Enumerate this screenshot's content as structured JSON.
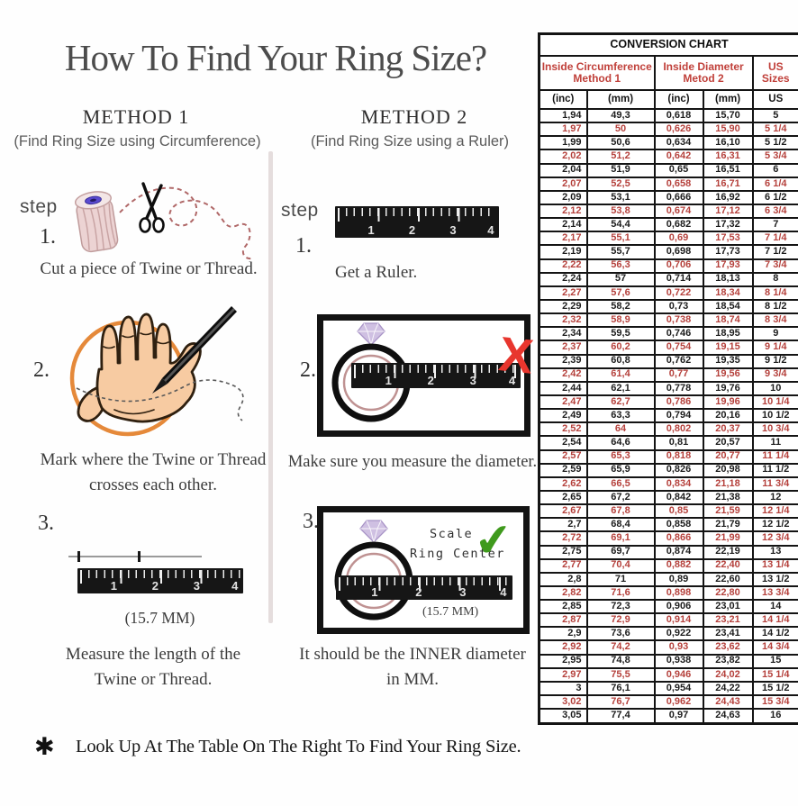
{
  "page": {
    "title": "How To Find Your Ring Size?",
    "footnote_bullet": "✱",
    "footnote": "Look Up At The Table On The Right To Find Your Ring Size."
  },
  "ruler_numbers": [
    "1",
    "2",
    "3",
    "4"
  ],
  "method1": {
    "heading": "METHOD 1",
    "subheading": "(Find Ring Size using Circumference)",
    "step_label": "step",
    "step1": {
      "num": "1.",
      "caption": "Cut a piece of Twine or Thread."
    },
    "step2": {
      "num": "2.",
      "caption_line1": "Mark where the Twine or Thread",
      "caption_line2": "crosses each other."
    },
    "step3": {
      "num": "3.",
      "measurement": "(15.7 MM)",
      "caption_line1": "Measure the length of the",
      "caption_line2": "Twine or Thread."
    }
  },
  "method2": {
    "heading": "METHOD 2",
    "subheading": "(Find Ring Size using a Ruler)",
    "step_label": "step",
    "step1": {
      "num": "1.",
      "caption": "Get a Ruler."
    },
    "step2": {
      "num": "2.",
      "wrong_mark": "X",
      "caption": "Make sure you measure the diameter."
    },
    "step3": {
      "num": "3.",
      "scale_line1": "Scale",
      "scale_line2": "Ring Center",
      "check_mark": "✔",
      "measurement": "(15.7 MM)",
      "caption_line1": "It should be the INNER diameter",
      "caption_line2": "in MM."
    }
  },
  "table": {
    "title": "CONVERSION CHART",
    "group_headers": [
      {
        "line1": "Inside Circumference",
        "line2": "Method 1"
      },
      {
        "line1": "Inside Diameter",
        "line2": "Metod 2"
      },
      {
        "line1": "US Sizes",
        "line2": ""
      }
    ],
    "sub_headers": [
      "(inc)",
      "(mm)",
      "(inc)",
      "(mm)",
      "US"
    ],
    "rows": [
      [
        "1,94",
        "49,3",
        "0,618",
        "15,70",
        "5"
      ],
      [
        "1,97",
        "50",
        "0,626",
        "15,90",
        "5 1/4"
      ],
      [
        "1,99",
        "50,6",
        "0,634",
        "16,10",
        "5 1/2"
      ],
      [
        "2,02",
        "51,2",
        "0,642",
        "16,31",
        "5 3/4"
      ],
      [
        "2,04",
        "51,9",
        "0,65",
        "16,51",
        "6"
      ],
      [
        "2,07",
        "52,5",
        "0,658",
        "16,71",
        "6 1/4"
      ],
      [
        "2,09",
        "53,1",
        "0,666",
        "16,92",
        "6 1/2"
      ],
      [
        "2,12",
        "53,8",
        "0,674",
        "17,12",
        "6 3/4"
      ],
      [
        "2,14",
        "54,4",
        "0,682",
        "17,32",
        "7"
      ],
      [
        "2,17",
        "55,1",
        "0,69",
        "17,53",
        "7 1/4"
      ],
      [
        "2,19",
        "55,7",
        "0,698",
        "17,73",
        "7 1/2"
      ],
      [
        "2,22",
        "56,3",
        "0,706",
        "17,93",
        "7 3/4"
      ],
      [
        "2,24",
        "57",
        "0,714",
        "18,13",
        "8"
      ],
      [
        "2,27",
        "57,6",
        "0,722",
        "18,34",
        "8 1/4"
      ],
      [
        "2,29",
        "58,2",
        "0,73",
        "18,54",
        "8 1/2"
      ],
      [
        "2,32",
        "58,9",
        "0,738",
        "18,74",
        "8 3/4"
      ],
      [
        "2,34",
        "59,5",
        "0,746",
        "18,95",
        "9"
      ],
      [
        "2,37",
        "60,2",
        "0,754",
        "19,15",
        "9 1/4"
      ],
      [
        "2,39",
        "60,8",
        "0,762",
        "19,35",
        "9 1/2"
      ],
      [
        "2,42",
        "61,4",
        "0,77",
        "19,56",
        "9 3/4"
      ],
      [
        "2,44",
        "62,1",
        "0,778",
        "19,76",
        "10"
      ],
      [
        "2,47",
        "62,7",
        "0,786",
        "19,96",
        "10 1/4"
      ],
      [
        "2,49",
        "63,3",
        "0,794",
        "20,16",
        "10 1/2"
      ],
      [
        "2,52",
        "64",
        "0,802",
        "20,37",
        "10 3/4"
      ],
      [
        "2,54",
        "64,6",
        "0,81",
        "20,57",
        "11"
      ],
      [
        "2,57",
        "65,3",
        "0,818",
        "20,77",
        "11 1/4"
      ],
      [
        "2,59",
        "65,9",
        "0,826",
        "20,98",
        "11 1/2"
      ],
      [
        "2,62",
        "66,5",
        "0,834",
        "21,18",
        "11 3/4"
      ],
      [
        "2,65",
        "67,2",
        "0,842",
        "21,38",
        "12"
      ],
      [
        "2,67",
        "67,8",
        "0,85",
        "21,59",
        "12 1/4"
      ],
      [
        "2,7",
        "68,4",
        "0,858",
        "21,79",
        "12 1/2"
      ],
      [
        "2,72",
        "69,1",
        "0,866",
        "21,99",
        "12 3/4"
      ],
      [
        "2,75",
        "69,7",
        "0,874",
        "22,19",
        "13"
      ],
      [
        "2,77",
        "70,4",
        "0,882",
        "22,40",
        "13 1/4"
      ],
      [
        "2,8",
        "71",
        "0,89",
        "22,60",
        "13 1/2"
      ],
      [
        "2,82",
        "71,6",
        "0,898",
        "22,80",
        "13 3/4"
      ],
      [
        "2,85",
        "72,3",
        "0,906",
        "23,01",
        "14"
      ],
      [
        "2,87",
        "72,9",
        "0,914",
        "23,21",
        "14 1/4"
      ],
      [
        "2,9",
        "73,6",
        "0,922",
        "23,41",
        "14 1/2"
      ],
      [
        "2,92",
        "74,2",
        "0,93",
        "23,62",
        "14 3/4"
      ],
      [
        "2,95",
        "74,8",
        "0,938",
        "23,82",
        "15"
      ],
      [
        "2,97",
        "75,5",
        "0,946",
        "24,02",
        "15 1/4"
      ],
      [
        "3",
        "76,1",
        "0,954",
        "24,22",
        "15 1/2"
      ],
      [
        "3,02",
        "76,7",
        "0,962",
        "24,43",
        "15 3/4"
      ],
      [
        "3,05",
        "77,4",
        "0,97",
        "24,63",
        "16"
      ]
    ]
  },
  "colors": {
    "table_red": "#b5413c",
    "check_green": "#3f9a1d",
    "x_red": "#e8362e",
    "circle_orange": "#e5893a"
  }
}
